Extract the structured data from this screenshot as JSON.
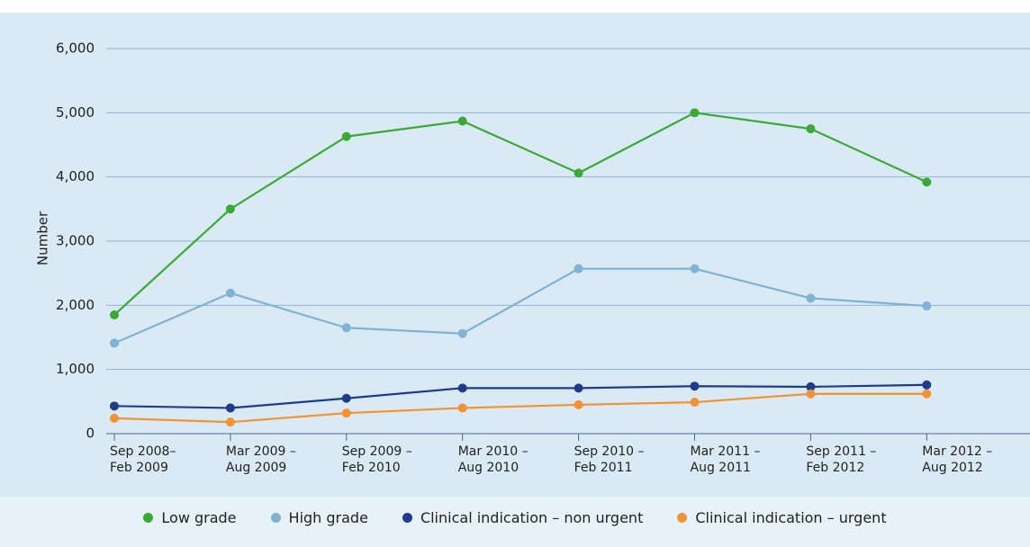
{
  "chart_data": {
    "type": "line",
    "y_label": "Number",
    "categories": [
      "Sep 2008–\nFeb 2009",
      "Mar 2009 –\nAug 2009",
      "Sep 2009 –\nFeb 2010",
      "Mar 2010 –\nAug 2010",
      "Sep 2010 –\nFeb 2011",
      "Mar 2011 –\nAug 2011",
      "Sep 2011 –\nFeb 2012",
      "Mar 2012 –\nAug 2012"
    ],
    "series": [
      {
        "name": "Low grade",
        "color": "#3aaa35",
        "values": [
          1850,
          3500,
          4630,
          4870,
          4060,
          5000,
          4750,
          3920
        ]
      },
      {
        "name": "High grade",
        "color": "#7fb2d4",
        "values": [
          1410,
          2190,
          1650,
          1560,
          2570,
          2570,
          2110,
          1990
        ]
      },
      {
        "name": "Clinical indication – non urgent",
        "color": "#1f3c8c",
        "values": [
          430,
          400,
          550,
          710,
          710,
          740,
          730,
          760
        ]
      },
      {
        "name": "Clinical indication – urgent",
        "color": "#f39232",
        "values": [
          240,
          180,
          320,
          400,
          450,
          490,
          620,
          620
        ]
      }
    ],
    "ylim": [
      0,
      6000
    ],
    "yticks": [
      0,
      {
        "value": 1000,
        "label": "1,000"
      },
      {
        "value": 2000,
        "label": "2,000"
      },
      {
        "value": 3000,
        "label": "3,000"
      },
      {
        "value": 4000,
        "label": "4,000"
      },
      {
        "value": 5000,
        "label": "5,000"
      },
      {
        "value": 6000,
        "label": "6,000"
      }
    ],
    "grid": true,
    "legend": "bottom"
  }
}
